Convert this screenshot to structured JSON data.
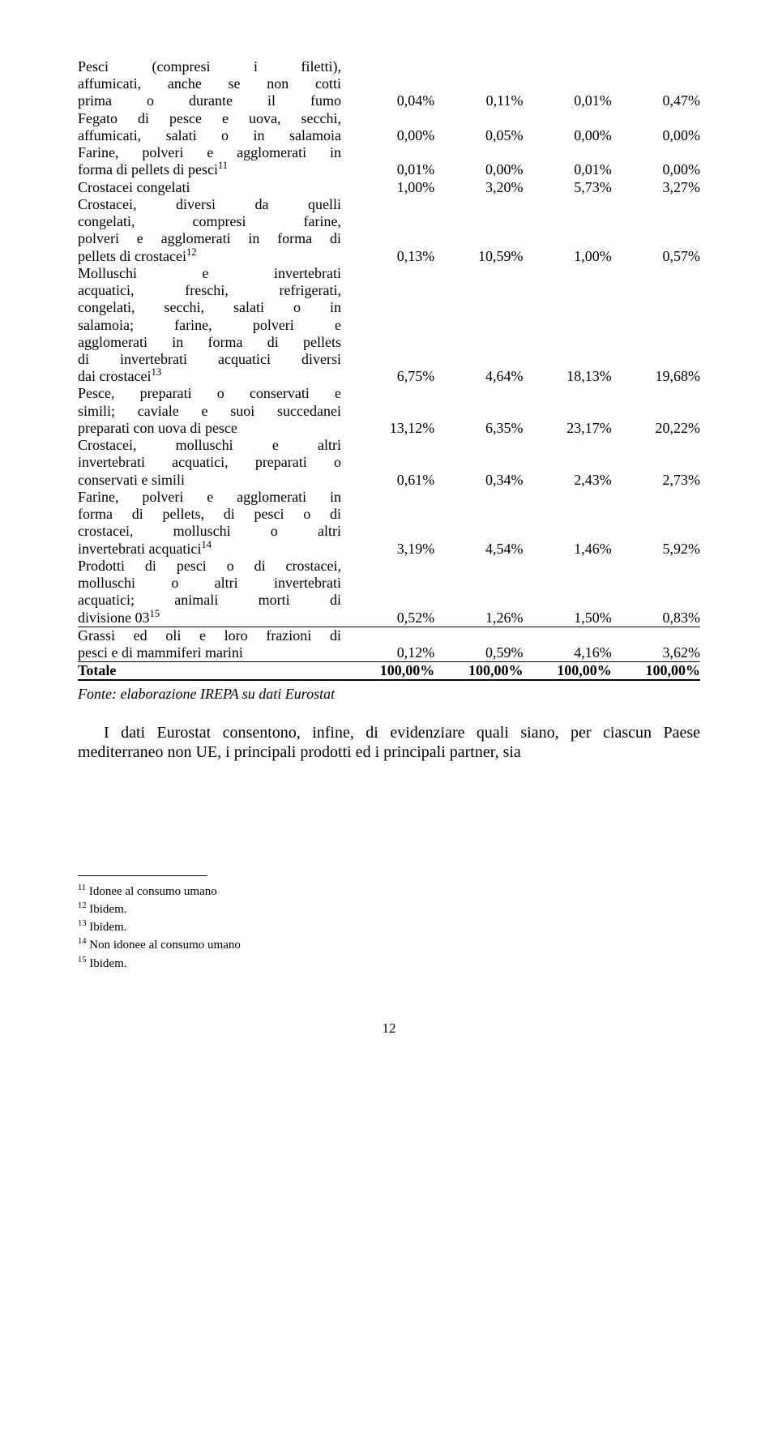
{
  "rows": [
    {
      "label_parts": [
        "Pesci (compresi i filetti),",
        "affumicati, anche se non cotti",
        "prima o durante il fumo"
      ],
      "vals": [
        "0,04%",
        "0,11%",
        "0,01%",
        "0,47%"
      ],
      "justify": true
    },
    {
      "label_parts": [
        "Fegato di pesce e uova, secchi,",
        "affumicati, salati o in salamoia"
      ],
      "vals": [
        "0,00%",
        "0,05%",
        "0,00%",
        "0,00%"
      ],
      "justify": true
    },
    {
      "label_parts": [
        "Farine, polveri e agglomerati in",
        "forma di pellets di pesci<sup>11</sup>"
      ],
      "vals": [
        "0,01%",
        "0,00%",
        "0,01%",
        "0,00%"
      ],
      "justify": true,
      "last_no_just": true
    },
    {
      "label_parts": [
        "Crostacei congelati"
      ],
      "vals": [
        "1,00%",
        "3,20%",
        "5,73%",
        "3,27%"
      ],
      "justify": false
    },
    {
      "label_parts": [
        "Crostacei, diversi da quelli",
        "congelati, compresi farine,",
        "polveri e agglomerati in forma di",
        "pellets di crostacei<sup>12</sup>"
      ],
      "vals": [
        "0,13%",
        "10,59%",
        "1,00%",
        "0,57%"
      ],
      "justify": true,
      "last_no_just": true
    },
    {
      "label_parts": [
        "Molluschi e invertebrati",
        "acquatici, freschi, refrigerati,",
        "congelati, secchi, salati o in",
        "salamoia; farine, polveri e",
        "agglomerati in forma di pellets",
        "di invertebrati acquatici diversi",
        "dai crostacei<sup>13</sup>"
      ],
      "vals": [
        "6,75%",
        "4,64%",
        "18,13%",
        "19,68%"
      ],
      "justify": true,
      "last_no_just": true
    },
    {
      "label_parts": [
        "Pesce, preparati o conservati e",
        "simili; caviale e suoi succedanei",
        "preparati con uova di pesce"
      ],
      "vals": [
        "13,12%",
        "6,35%",
        "23,17%",
        "20,22%"
      ],
      "justify": true,
      "last_no_just": true
    },
    {
      "label_parts": [
        "Crostacei, molluschi e altri",
        "invertebrati acquatici, preparati o",
        "conservati e simili"
      ],
      "vals": [
        "0,61%",
        "0,34%",
        "2,43%",
        "2,73%"
      ],
      "justify": true,
      "last_no_just": true
    },
    {
      "label_parts": [
        "Farine, polveri e agglomerati in",
        "forma di pellets, di pesci o di",
        "crostacei, molluschi o altri",
        "invertebrati acquatici<sup>14</sup>"
      ],
      "vals": [
        "3,19%",
        "4,54%",
        "1,46%",
        "5,92%"
      ],
      "justify": true,
      "last_no_just": true
    },
    {
      "label_parts": [
        "Prodotti di pesci o di crostacei,",
        "molluschi o altri invertebrati",
        "acquatici; animali morti di",
        "divisione 03<sup>15</sup>"
      ],
      "vals": [
        "0,52%",
        "1,26%",
        "1,50%",
        "0,83%"
      ],
      "justify": true,
      "last_no_just": true
    },
    {
      "rule": "thin"
    },
    {
      "label_parts": [
        "Grassi ed oli e loro frazioni di",
        "pesci e di mammiferi marini"
      ],
      "vals": [
        "0,12%",
        "0,59%",
        "4,16%",
        "3,62%"
      ],
      "justify": true,
      "last_no_just": true
    },
    {
      "rule": "thin"
    },
    {
      "label_parts": [
        "Totale"
      ],
      "vals": [
        "100,00%",
        "100,00%",
        "100,00%",
        "100,00%"
      ],
      "bold": true,
      "justify": false
    },
    {
      "rule": "thick"
    }
  ],
  "source_note": "Fonte: elaborazione IREPA su dati Eurostat",
  "body_text": "I dati Eurostat consentono, infine, di evidenziare quali siano, per ciascun Paese mediterraneo non UE, i principali prodotti ed i principali partner, sia",
  "footnotes": [
    {
      "num": "11",
      "text": "Idonee al consumo umano"
    },
    {
      "num": "12",
      "text": "Ibidem."
    },
    {
      "num": "13",
      "text": "Ibidem."
    },
    {
      "num": "14",
      "text": "Non idonee al consumo umano"
    },
    {
      "num": "15",
      "text": "Ibidem."
    }
  ],
  "page_number": "12"
}
